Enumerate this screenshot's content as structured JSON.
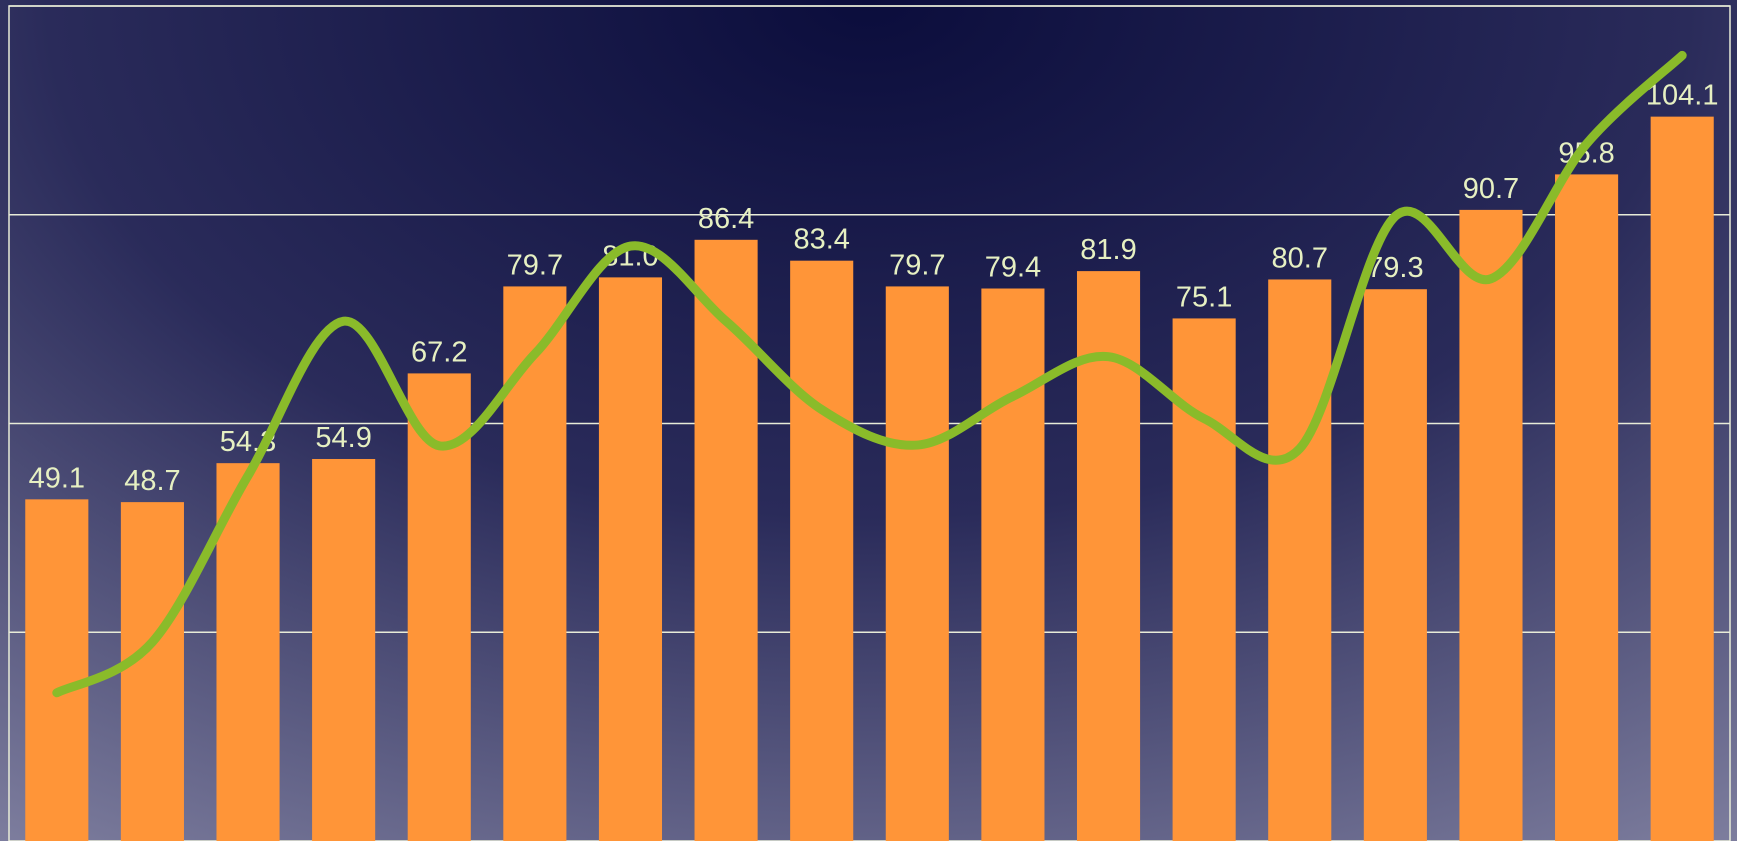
{
  "chart_data": {
    "type": "bar",
    "categories": [
      null,
      null,
      null,
      null,
      null,
      null,
      null,
      null,
      null,
      null,
      null,
      null,
      null,
      null,
      null,
      null,
      null,
      null
    ],
    "series": [
      {
        "color": "#ff9538",
        "type": "bar",
        "values": [
          49.1,
          48.7,
          54.3,
          54.9,
          67.2,
          79.7,
          81.0,
          86.4,
          83.4,
          79.7,
          79.4,
          81.9,
          75.1,
          80.7,
          79.3,
          90.7,
          95.8,
          104.1
        ],
        "value_labels": [
          "49.1",
          "48.7",
          "54.3",
          "54.9",
          "67.2",
          "79.7",
          "81.0",
          "86.4",
          "83.4",
          "79.7",
          "79.4",
          "81.9",
          "75.1",
          "80.7",
          "79.3",
          "90.7",
          "95.8",
          "104.1"
        ]
      },
      {
        "color": "#8abb2a",
        "type": "line",
        "values": [
          21.3,
          28.6,
          52.5,
          74.7,
          56.8,
          70,
          85.5,
          74.7,
          62,
          56.9,
          63.9,
          69.6,
          60.7,
          56.4,
          89.8,
          80.8,
          100.2,
          112.9
        ]
      }
    ],
    "ylim": [
      0,
      120
    ],
    "yticks": [
      0,
      30,
      60,
      90,
      120
    ],
    "grid": true
  }
}
